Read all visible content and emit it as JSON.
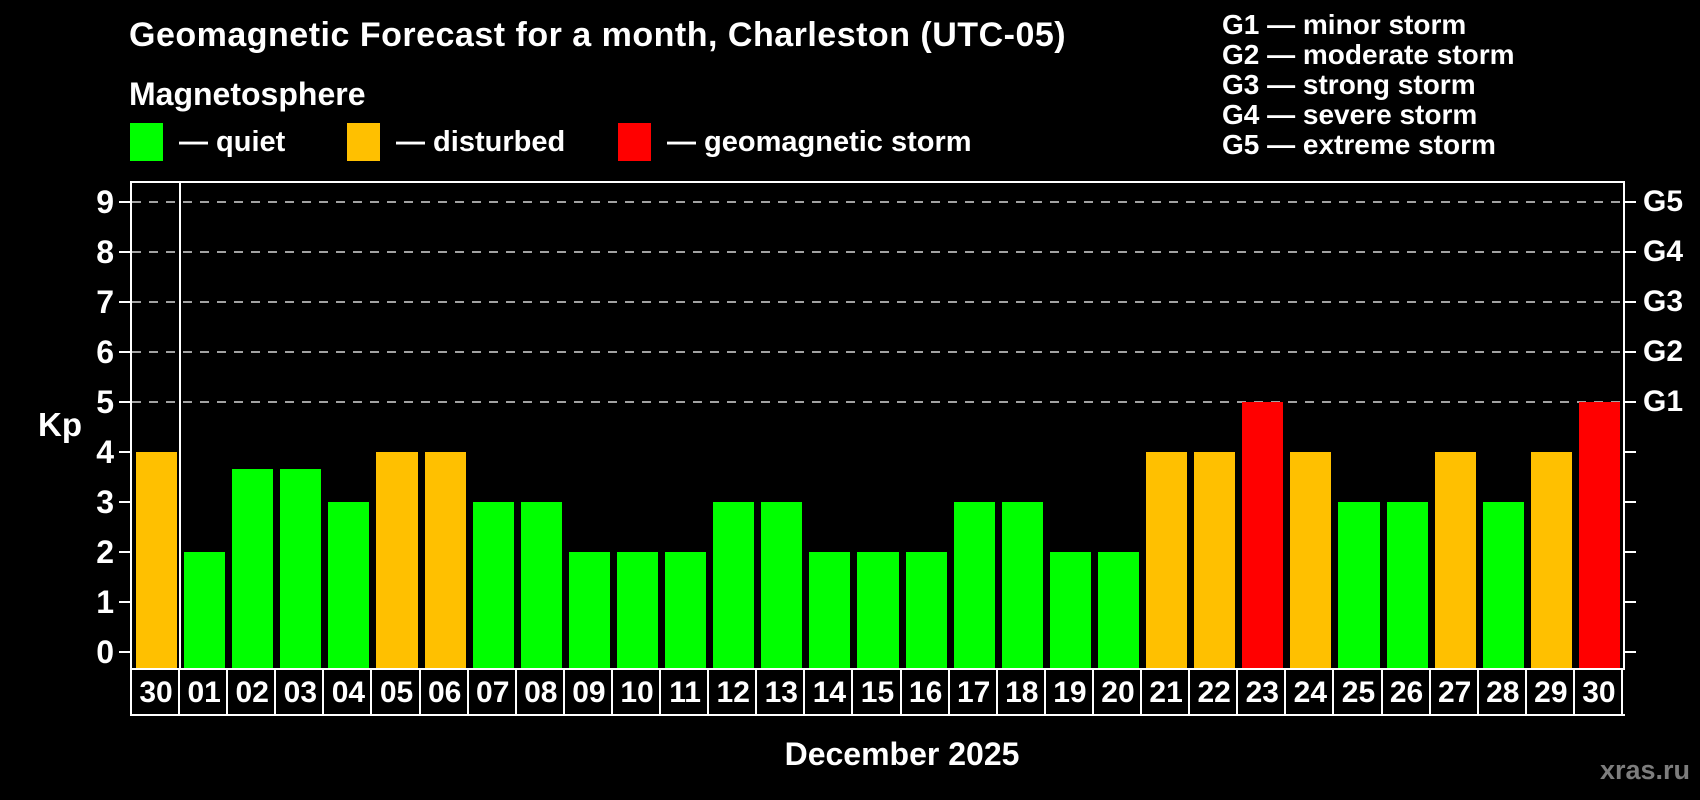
{
  "header": {
    "title": "Geomagnetic Forecast for a month, Charleston (UTC-05)",
    "subtitle": "Magnetosphere",
    "legend": [
      {
        "key": "quiet",
        "label": "— quiet",
        "color": "#00ff00"
      },
      {
        "key": "disturbed",
        "label": "— disturbed",
        "color": "#ffc000"
      },
      {
        "key": "storm",
        "label": "— geomagnetic storm",
        "color": "#ff0000"
      }
    ],
    "g_legend": [
      "G1 — minor storm",
      "G2 — moderate storm",
      "G3 — strong storm",
      "G4 — severe storm",
      "G5 — extreme storm"
    ]
  },
  "chart_data": {
    "type": "bar",
    "title": "Geomagnetic Forecast for a month, Charleston (UTC-05)",
    "xlabel": "December 2025",
    "ylabel": "Kp",
    "ylim": [
      0,
      9
    ],
    "y_ticks": [
      0,
      1,
      2,
      3,
      4,
      5,
      6,
      7,
      8,
      9
    ],
    "gridlines_at": [
      5,
      6,
      7,
      8,
      9
    ],
    "right_axis_labels": [
      {
        "kp": 5,
        "label": "G1"
      },
      {
        "kp": 6,
        "label": "G2"
      },
      {
        "kp": 7,
        "label": "G3"
      },
      {
        "kp": 8,
        "label": "G4"
      },
      {
        "kp": 9,
        "label": "G5"
      }
    ],
    "status_colors": {
      "quiet": "#00ff00",
      "disturbed": "#ffc000",
      "storm": "#ff0000"
    },
    "prev_month_separator_after_index": 0,
    "bars": [
      {
        "day": "30",
        "kp": 4,
        "status": "disturbed"
      },
      {
        "day": "01",
        "kp": 2,
        "status": "quiet"
      },
      {
        "day": "02",
        "kp": 3.67,
        "status": "quiet"
      },
      {
        "day": "03",
        "kp": 3.67,
        "status": "quiet"
      },
      {
        "day": "04",
        "kp": 3,
        "status": "quiet"
      },
      {
        "day": "05",
        "kp": 4,
        "status": "disturbed"
      },
      {
        "day": "06",
        "kp": 4,
        "status": "disturbed"
      },
      {
        "day": "07",
        "kp": 3,
        "status": "quiet"
      },
      {
        "day": "08",
        "kp": 3,
        "status": "quiet"
      },
      {
        "day": "09",
        "kp": 2,
        "status": "quiet"
      },
      {
        "day": "10",
        "kp": 2,
        "status": "quiet"
      },
      {
        "day": "11",
        "kp": 2,
        "status": "quiet"
      },
      {
        "day": "12",
        "kp": 3,
        "status": "quiet"
      },
      {
        "day": "13",
        "kp": 3,
        "status": "quiet"
      },
      {
        "day": "14",
        "kp": 2,
        "status": "quiet"
      },
      {
        "day": "15",
        "kp": 2,
        "status": "quiet"
      },
      {
        "day": "16",
        "kp": 2,
        "status": "quiet"
      },
      {
        "day": "17",
        "kp": 3,
        "status": "quiet"
      },
      {
        "day": "18",
        "kp": 3,
        "status": "quiet"
      },
      {
        "day": "19",
        "kp": 2,
        "status": "quiet"
      },
      {
        "day": "20",
        "kp": 2,
        "status": "quiet"
      },
      {
        "day": "21",
        "kp": 4,
        "status": "disturbed"
      },
      {
        "day": "22",
        "kp": 4,
        "status": "disturbed"
      },
      {
        "day": "23",
        "kp": 5,
        "status": "storm"
      },
      {
        "day": "24",
        "kp": 4,
        "status": "disturbed"
      },
      {
        "day": "25",
        "kp": 3,
        "status": "quiet"
      },
      {
        "day": "26",
        "kp": 3,
        "status": "quiet"
      },
      {
        "day": "27",
        "kp": 4,
        "status": "disturbed"
      },
      {
        "day": "28",
        "kp": 3,
        "status": "quiet"
      },
      {
        "day": "29",
        "kp": 4,
        "status": "disturbed"
      },
      {
        "day": "30",
        "kp": 5,
        "status": "storm"
      }
    ]
  },
  "footer": {
    "xlabel": "December 2025",
    "watermark": "xras.ru"
  }
}
